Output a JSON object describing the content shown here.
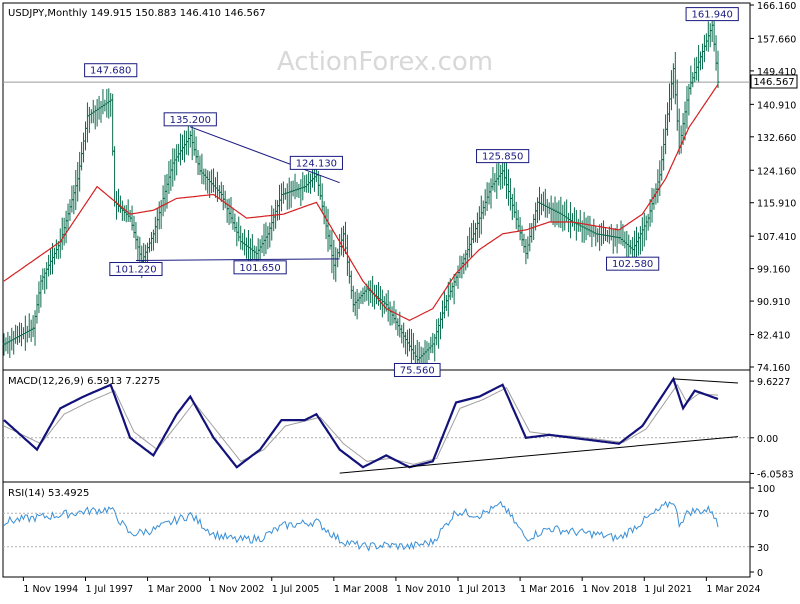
{
  "watermark": "ActionForex.com",
  "price_panel": {
    "header": "USDJPY,Monthly  149.915 150.883 146.410 146.567",
    "current_price": "146.567",
    "y_ticks": [
      "166.160",
      "157.660",
      "149.410",
      "140.910",
      "132.660",
      "124.160",
      "115.910",
      "107.410",
      "99.160",
      "90.910",
      "82.410",
      "74.160"
    ]
  },
  "macd_panel": {
    "header": "MACD(12,26,9) 6.5913 7.2275",
    "y_ticks": [
      "9.6227",
      "0.00",
      "-6.0583"
    ]
  },
  "rsi_panel": {
    "header": "RSI(14) 53.4925",
    "y_ticks": [
      "100",
      "70",
      "30",
      "0"
    ]
  },
  "x_axis": {
    "ticks": [
      "1 Nov 1994",
      "1 Jul 1997",
      "1 Mar 2000",
      "1 Nov 2002",
      "1 Jul 2005",
      "1 Mar 2008",
      "1 Nov 2010",
      "1 Jul 2013",
      "1 Mar 2016",
      "1 Nov 2018",
      "1 Jul 2021",
      "1 Mar 2024"
    ]
  },
  "chart_data": [
    {
      "type": "ohlc",
      "title": "USDJPY,Monthly",
      "ohlc_last": {
        "open": 149.915,
        "high": 150.883,
        "low": 146.41,
        "close": 146.567
      },
      "ylim": [
        74.16,
        166.16
      ],
      "x_range": [
        "1994-01",
        "2024-09"
      ],
      "close_path": [
        [
          "1994-01",
          80
        ],
        [
          "1995-04",
          84
        ],
        [
          "1995-08",
          96
        ],
        [
          "1996-06",
          106
        ],
        [
          "1997-03",
          122
        ],
        [
          "1997-08",
          138
        ],
        [
          "1998-08",
          142
        ],
        [
          "1998-10",
          116
        ],
        [
          "1999-06",
          112
        ],
        [
          "1999-12",
          101
        ],
        [
          "2000-06",
          108
        ],
        [
          "2001-04",
          126
        ],
        [
          "2002-01",
          133
        ],
        [
          "2002-06",
          124
        ],
        [
          "2003-05",
          118
        ],
        [
          "2004-03",
          106
        ],
        [
          "2004-11",
          103
        ],
        [
          "2005-05",
          108
        ],
        [
          "2005-12",
          118
        ],
        [
          "2006-12",
          120
        ],
        [
          "2007-06",
          123
        ],
        [
          "2007-09",
          115
        ],
        [
          "2008-03",
          100
        ],
        [
          "2008-08",
          108
        ],
        [
          "2009-01",
          90
        ],
        [
          "2009-08",
          94
        ],
        [
          "2010-06",
          90
        ],
        [
          "2011-03",
          82
        ],
        [
          "2011-10",
          76
        ],
        [
          "2012-06",
          80
        ],
        [
          "2013-01",
          91
        ],
        [
          "2013-06",
          97
        ],
        [
          "2013-12",
          104
        ],
        [
          "2014-12",
          120
        ],
        [
          "2015-06",
          124
        ],
        [
          "2016-06",
          103
        ],
        [
          "2016-12",
          116
        ],
        [
          "2017-12",
          113
        ],
        [
          "2018-06",
          111
        ],
        [
          "2019-06",
          108
        ],
        [
          "2020-06",
          107
        ],
        [
          "2021-01",
          104
        ],
        [
          "2021-09",
          112
        ],
        [
          "2022-03",
          123
        ],
        [
          "2022-10",
          150
        ],
        [
          "2023-01",
          130
        ],
        [
          "2023-06",
          145
        ],
        [
          "2024-06",
          161
        ],
        [
          "2024-09",
          146.567
        ]
      ],
      "ma_path": [
        [
          "1994-01",
          96
        ],
        [
          "1996-06",
          106
        ],
        [
          "1998-01",
          120
        ],
        [
          "1999-06",
          113
        ],
        [
          "2000-06",
          114
        ],
        [
          "2001-06",
          117
        ],
        [
          "2003-01",
          118
        ],
        [
          "2004-06",
          112
        ],
        [
          "2006-01",
          113
        ],
        [
          "2007-06",
          116
        ],
        [
          "2008-06",
          106
        ],
        [
          "2009-06",
          96
        ],
        [
          "2010-06",
          89
        ],
        [
          "2011-06",
          86
        ],
        [
          "2012-06",
          89
        ],
        [
          "2013-06",
          98
        ],
        [
          "2014-06",
          104
        ],
        [
          "2015-06",
          108
        ],
        [
          "2016-06",
          109
        ],
        [
          "2017-06",
          111
        ],
        [
          "2018-06",
          111
        ],
        [
          "2019-06",
          110
        ],
        [
          "2020-06",
          109
        ],
        [
          "2021-06",
          113
        ],
        [
          "2022-06",
          122
        ],
        [
          "2023-06",
          135
        ],
        [
          "2024-09",
          146
        ]
      ],
      "annotations": [
        {
          "label": "147.680",
          "date": "1998-08",
          "price": 147.68
        },
        {
          "label": "135.200",
          "date": "2002-01",
          "price": 135.2
        },
        {
          "label": "124.130",
          "date": "2007-06",
          "price": 124.13
        },
        {
          "label": "101.220",
          "date": "1999-09",
          "price": 101.22
        },
        {
          "label": "101.650",
          "date": "2005-01",
          "price": 101.65
        },
        {
          "label": "75.560",
          "date": "2011-10",
          "price": 75.56
        },
        {
          "label": "125.850",
          "date": "2015-06",
          "price": 125.85
        },
        {
          "label": "102.580",
          "date": "2021-01",
          "price": 102.58
        },
        {
          "label": "161.940",
          "date": "2024-06",
          "price": 161.94
        }
      ],
      "trendlines": [
        {
          "from": [
            "2002-01",
            135.2
          ],
          "to": [
            "2008-06",
            121
          ]
        },
        {
          "from": [
            "1999-09",
            101.22
          ],
          "to": [
            "2008-06",
            101.65
          ]
        }
      ]
    },
    {
      "type": "line",
      "title": "MACD(12,26,9)",
      "ylim": [
        -7,
        11
      ],
      "series": [
        {
          "name": "MACD",
          "values": [
            [
              "1994-01",
              3
            ],
            [
              "1995-06",
              -2
            ],
            [
              "1996-06",
              5
            ],
            [
              "1997-06",
              7
            ],
            [
              "1998-08",
              9
            ],
            [
              "1999-06",
              0
            ],
            [
              "2000-06",
              -3
            ],
            [
              "2001-06",
              4
            ],
            [
              "2002-01",
              7
            ],
            [
              "2003-01",
              0
            ],
            [
              "2004-01",
              -5
            ],
            [
              "2005-01",
              -2
            ],
            [
              "2005-12",
              3
            ],
            [
              "2006-12",
              3
            ],
            [
              "2007-06",
              4
            ],
            [
              "2008-06",
              -2
            ],
            [
              "2009-06",
              -5
            ],
            [
              "2010-06",
              -3
            ],
            [
              "2011-06",
              -5
            ],
            [
              "2012-06",
              -4
            ],
            [
              "2013-06",
              6
            ],
            [
              "2014-06",
              7
            ],
            [
              "2015-06",
              9
            ],
            [
              "2016-06",
              0
            ],
            [
              "2017-06",
              0.5
            ],
            [
              "2018-06",
              0
            ],
            [
              "2019-06",
              -0.5
            ],
            [
              "2020-06",
              -1
            ],
            [
              "2021-06",
              2
            ],
            [
              "2022-10",
              10
            ],
            [
              "2023-03",
              5
            ],
            [
              "2023-09",
              8
            ],
            [
              "2024-09",
              6.59
            ]
          ]
        },
        {
          "name": "Signal",
          "values": [
            [
              "1994-01",
              2
            ],
            [
              "1995-08",
              -1
            ],
            [
              "1996-08",
              4
            ],
            [
              "1997-08",
              6
            ],
            [
              "1998-10",
              8
            ],
            [
              "1999-08",
              1
            ],
            [
              "2000-08",
              -2
            ],
            [
              "2001-08",
              3
            ],
            [
              "2002-03",
              6
            ],
            [
              "2003-03",
              1
            ],
            [
              "2004-03",
              -4
            ],
            [
              "2005-03",
              -2
            ],
            [
              "2006-02",
              2
            ],
            [
              "2007-02",
              3
            ],
            [
              "2007-08",
              3.5
            ],
            [
              "2008-08",
              -1
            ],
            [
              "2009-08",
              -4
            ],
            [
              "2010-08",
              -3.5
            ],
            [
              "2011-08",
              -4.5
            ],
            [
              "2012-08",
              -3.5
            ],
            [
              "2013-08",
              5
            ],
            [
              "2014-08",
              6.5
            ],
            [
              "2015-08",
              8.5
            ],
            [
              "2016-08",
              1
            ],
            [
              "2017-08",
              0.5
            ],
            [
              "2018-08",
              0.2
            ],
            [
              "2019-08",
              -0.3
            ],
            [
              "2020-08",
              -0.8
            ],
            [
              "2021-08",
              1.5
            ],
            [
              "2022-12",
              9
            ],
            [
              "2023-05",
              6
            ],
            [
              "2023-11",
              7.5
            ],
            [
              "2024-09",
              7.23
            ]
          ]
        }
      ],
      "trendlines": [
        {
          "from": [
            "2008-06",
            -6
          ],
          "to": [
            "2024-09",
            0.2
          ]
        },
        {
          "from": [
            "2022-10",
            10
          ],
          "to": [
            "2024-09",
            9.3
          ]
        }
      ]
    },
    {
      "type": "line",
      "title": "RSI(14)",
      "ylim": [
        0,
        100
      ],
      "series": [
        {
          "name": "RSI",
          "values": [
            [
              "1994-01",
              60
            ],
            [
              "1995-06",
              65
            ],
            [
              "1996-06",
              68
            ],
            [
              "1997-06",
              72
            ],
            [
              "1998-08",
              75
            ],
            [
              "1999-06",
              45
            ],
            [
              "2000-06",
              50
            ],
            [
              "2001-06",
              62
            ],
            [
              "2002-01",
              68
            ],
            [
              "2003-01",
              45
            ],
            [
              "2004-01",
              38
            ],
            [
              "2005-01",
              40
            ],
            [
              "2006-01",
              55
            ],
            [
              "2007-06",
              60
            ],
            [
              "2008-06",
              38
            ],
            [
              "2009-06",
              30
            ],
            [
              "2010-06",
              32
            ],
            [
              "2011-06",
              30
            ],
            [
              "2012-06",
              36
            ],
            [
              "2013-06",
              72
            ],
            [
              "2014-06",
              68
            ],
            [
              "2015-06",
              80
            ],
            [
              "2016-06",
              40
            ],
            [
              "2017-06",
              52
            ],
            [
              "2018-06",
              48
            ],
            [
              "2019-06",
              45
            ],
            [
              "2020-06",
              40
            ],
            [
              "2021-06",
              60
            ],
            [
              "2022-10",
              85
            ],
            [
              "2023-01",
              58
            ],
            [
              "2023-06",
              72
            ],
            [
              "2024-06",
              74
            ],
            [
              "2024-09",
              53.49
            ]
          ]
        }
      ]
    }
  ]
}
